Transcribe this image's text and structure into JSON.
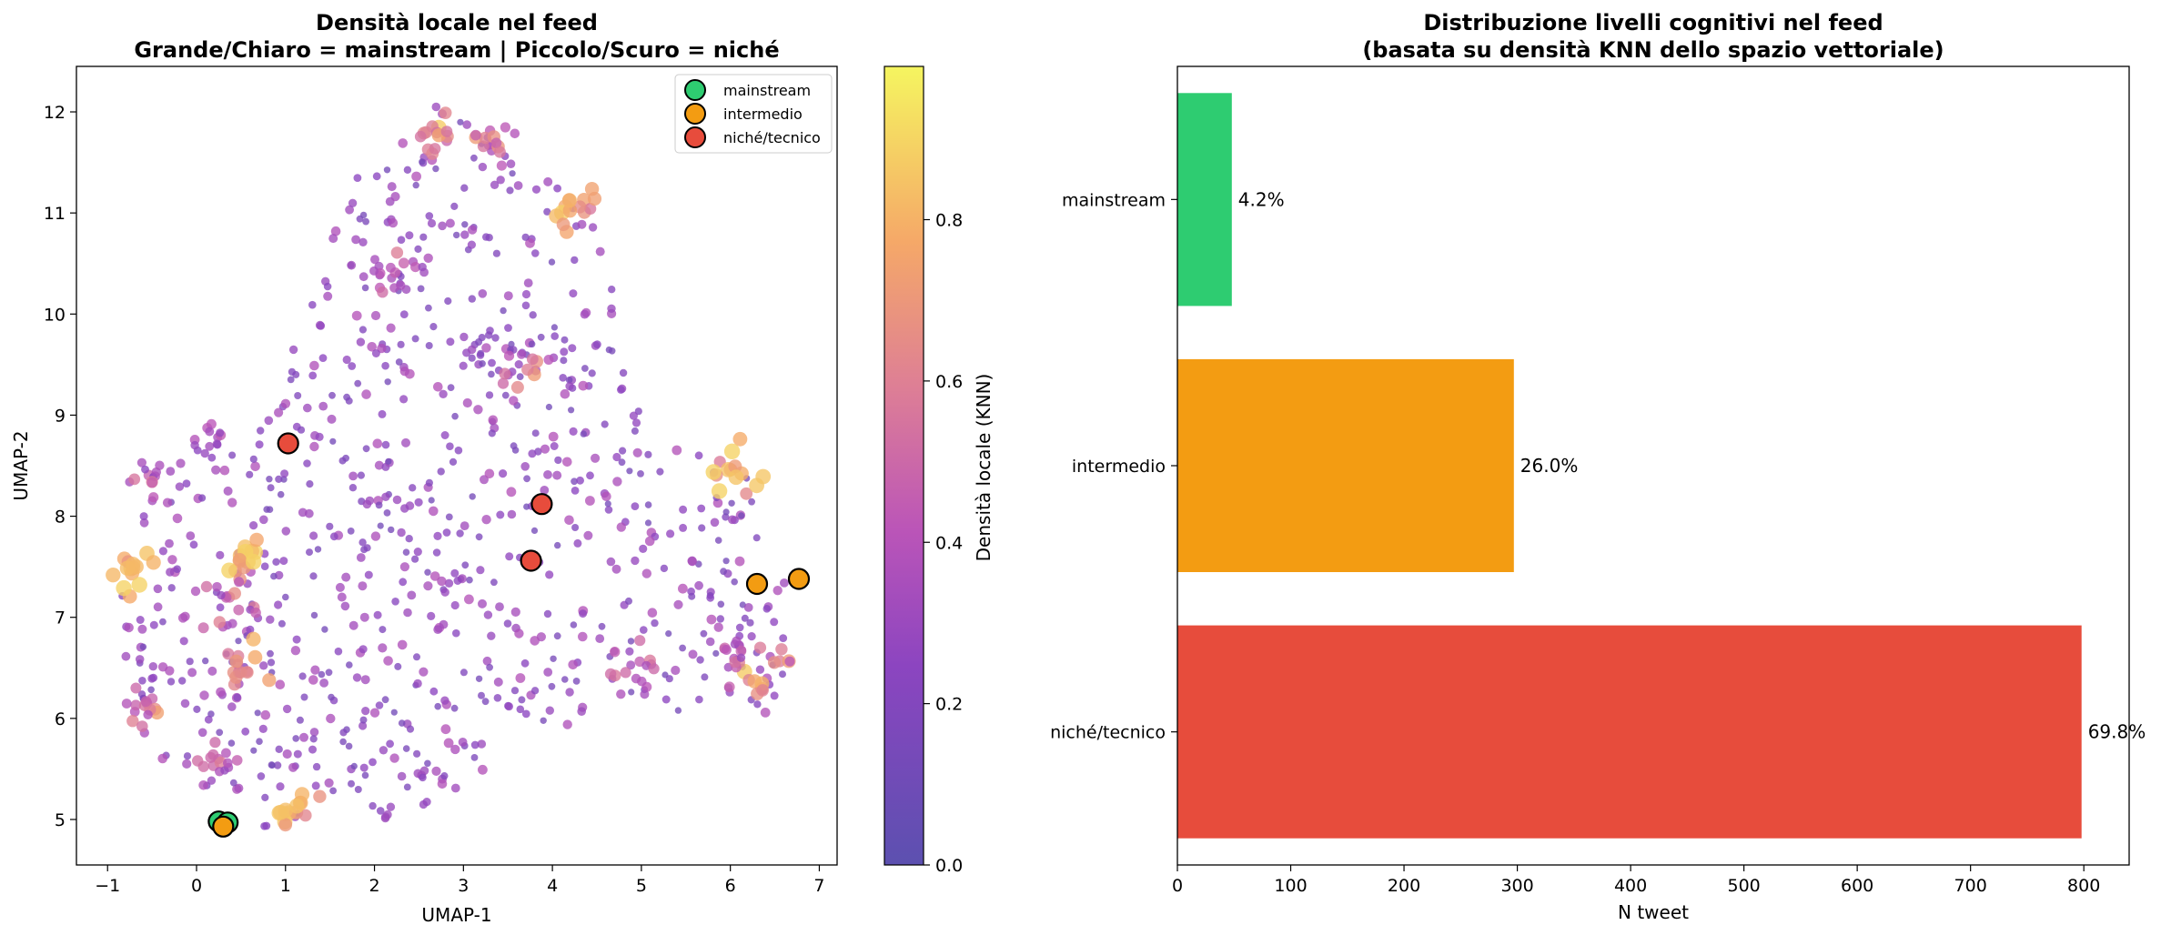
{
  "chart_data": [
    {
      "type": "scatter",
      "title": "Densità locale nel feed",
      "subtitle": "Grande/Chiaro = mainstream | Piccolo/Scuro = niché",
      "xlabel": "UMAP-1",
      "ylabel": "UMAP-2",
      "xlim": [
        -1.35,
        7.2
      ],
      "ylim": [
        4.55,
        12.45
      ],
      "xticks": [
        "−1",
        "0",
        "1",
        "2",
        "3",
        "4",
        "5",
        "6",
        "7"
      ],
      "yticks": [
        "5",
        "6",
        "7",
        "8",
        "9",
        "10",
        "11",
        "12"
      ],
      "colorbar": {
        "label": "Densità locale (KNN)",
        "range": [
          0.0,
          0.99
        ],
        "ticks": [
          "0.0",
          "0.2",
          "0.4",
          "0.6",
          "0.8"
        ],
        "colormap": "plasma"
      },
      "legend": {
        "position": "top-right",
        "entries": [
          {
            "label": "mainstream",
            "color": "#2ecc71"
          },
          {
            "label": "intermedio",
            "color": "#f39c12"
          },
          {
            "label": "niché/tecnico",
            "color": "#e74c3c"
          }
        ]
      },
      "highlighted_points": [
        {
          "category": "mainstream",
          "x": 0.25,
          "y": 4.98
        },
        {
          "category": "mainstream",
          "x": 0.35,
          "y": 4.97
        },
        {
          "category": "intermedio",
          "x": 0.3,
          "y": 4.93
        },
        {
          "category": "intermedio",
          "x": 6.3,
          "y": 7.33
        },
        {
          "category": "intermedio",
          "x": 6.77,
          "y": 7.38
        },
        {
          "category": "niché/tecnico",
          "x": 1.03,
          "y": 8.72
        },
        {
          "category": "niché/tecnico",
          "x": 3.88,
          "y": 8.12
        },
        {
          "category": "niché/tecnico",
          "x": 3.76,
          "y": 7.56
        }
      ],
      "dense_clusters": [
        {
          "x": 2.65,
          "y": 11.8,
          "density": 0.6
        },
        {
          "x": 4.3,
          "y": 11.05,
          "density": 0.75
        },
        {
          "x": 6.05,
          "y": 8.45,
          "density": 0.8
        },
        {
          "x": 0.45,
          "y": 7.6,
          "density": 0.8
        },
        {
          "x": -0.7,
          "y": 7.45,
          "density": 0.85
        },
        {
          "x": 6.4,
          "y": 6.35,
          "density": 0.65
        },
        {
          "x": 0.55,
          "y": 6.5,
          "density": 0.6
        },
        {
          "x": 1.05,
          "y": 5.12,
          "density": 0.75
        },
        {
          "x": -0.6,
          "y": 6.05,
          "density": 0.55
        },
        {
          "x": 3.8,
          "y": 9.5,
          "density": 0.5
        },
        {
          "x": 3.3,
          "y": 11.72,
          "density": 0.5
        },
        {
          "x": -0.55,
          "y": 8.4,
          "density": 0.4
        },
        {
          "x": 0.1,
          "y": 8.75,
          "density": 0.35
        },
        {
          "x": 0.4,
          "y": 7.1,
          "density": 0.5
        },
        {
          "x": 6.1,
          "y": 6.6,
          "density": 0.45
        },
        {
          "x": 4.85,
          "y": 6.48,
          "density": 0.5
        },
        {
          "x": 2.2,
          "y": 10.45,
          "density": 0.45
        },
        {
          "x": 0.2,
          "y": 5.6,
          "density": 0.45
        }
      ]
    },
    {
      "type": "bar",
      "orientation": "horizontal",
      "title": "Distribuzione livelli cognitivi nel feed",
      "subtitle": "(basata su densità KNN dello spazio vettoriale)",
      "xlabel": "N tweet",
      "ylabel": "",
      "xlim": [
        0,
        840
      ],
      "xticks": [
        "0",
        "100",
        "200",
        "300",
        "400",
        "500",
        "600",
        "700",
        "800"
      ],
      "categories": [
        "mainstream",
        "intermedio",
        "niché/tecnico"
      ],
      "values": [
        48,
        297,
        798
      ],
      "labels": [
        "4.2%",
        "26.0%",
        "69.8%"
      ],
      "colors": [
        "#2ecc71",
        "#f39c12",
        "#e74c3c"
      ]
    }
  ]
}
